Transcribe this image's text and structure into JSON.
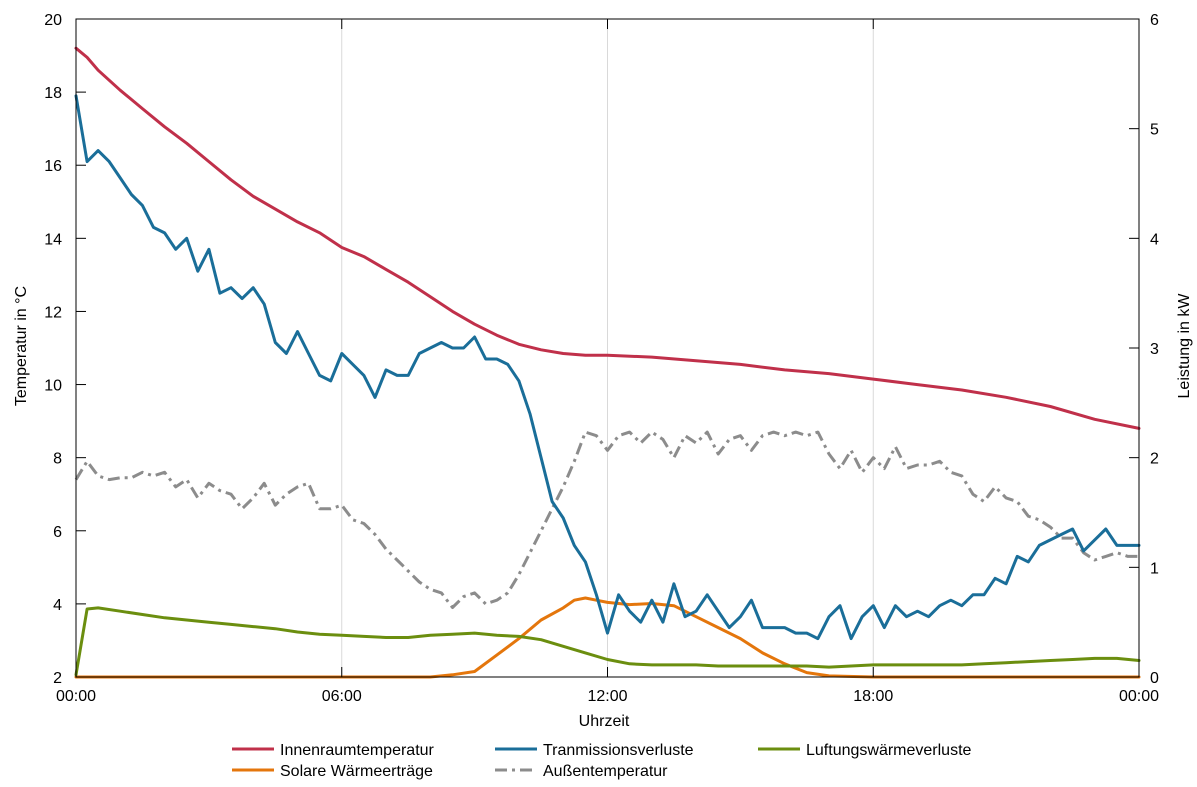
{
  "chart_data": {
    "type": "line",
    "xlabel": "Uhrzeit",
    "ylabel_left": "Temperatur in °C",
    "ylabel_right": "Leistung in kW",
    "x_ticks": [
      0,
      6,
      12,
      18,
      24
    ],
    "x_tick_labels": [
      "00:00",
      "06:00",
      "12:00",
      "18:00",
      "00:00"
    ],
    "xlim": [
      0,
      24
    ],
    "ylim_left": [
      2,
      20
    ],
    "y_ticks_left": [
      2,
      4,
      6,
      8,
      10,
      12,
      14,
      16,
      18,
      20
    ],
    "y_tick_labels_left": [
      "2",
      "4",
      "6",
      "8",
      "10",
      "12",
      "14",
      "16",
      "18",
      "20"
    ],
    "ylim_right": [
      0,
      6
    ],
    "y_ticks_right": [
      0,
      1,
      2,
      3,
      4,
      5,
      6
    ],
    "y_tick_labels_right": [
      "0",
      "1",
      "2",
      "3",
      "4",
      "5",
      "6"
    ],
    "grid": true,
    "legend_placement": "bottom",
    "series": [
      {
        "name": "Innenraumtemperatur",
        "axis": "left",
        "color": "#c0304a",
        "style": "solid",
        "x": [
          0,
          0.25,
          0.5,
          1,
          1.5,
          2,
          2.5,
          3,
          3.5,
          4,
          4.5,
          5,
          5.5,
          6,
          6.5,
          7,
          7.5,
          8,
          8.5,
          9,
          9.5,
          10,
          10.5,
          11,
          11.5,
          12,
          13,
          14,
          15,
          16,
          17,
          18,
          19,
          20,
          21,
          22,
          23,
          24
        ],
        "y": [
          19.2,
          18.95,
          18.6,
          18.05,
          17.55,
          17.05,
          16.6,
          16.1,
          15.6,
          15.15,
          14.8,
          14.45,
          14.15,
          13.75,
          13.5,
          13.15,
          12.8,
          12.4,
          12.0,
          11.65,
          11.35,
          11.1,
          10.95,
          10.85,
          10.8,
          10.8,
          10.75,
          10.65,
          10.55,
          10.4,
          10.3,
          10.15,
          10.0,
          9.85,
          9.65,
          9.4,
          9.05,
          8.8
        ]
      },
      {
        "name": "Tranmissionsverluste",
        "axis": "right",
        "color": "#1a6e99",
        "style": "solid",
        "x": [
          0,
          0.25,
          0.5,
          0.75,
          1,
          1.25,
          1.5,
          1.75,
          2,
          2.25,
          2.5,
          2.75,
          3,
          3.25,
          3.5,
          3.75,
          4,
          4.25,
          4.5,
          4.75,
          5,
          5.25,
          5.5,
          5.75,
          6,
          6.25,
          6.5,
          6.75,
          7,
          7.25,
          7.5,
          7.75,
          8,
          8.25,
          8.5,
          8.75,
          9,
          9.25,
          9.5,
          9.75,
          10,
          10.25,
          10.5,
          10.75,
          11,
          11.25,
          11.5,
          11.75,
          12,
          12.25,
          12.5,
          12.75,
          13,
          13.25,
          13.5,
          13.75,
          14,
          14.25,
          14.5,
          14.75,
          15,
          15.25,
          15.5,
          15.75,
          16,
          16.25,
          16.5,
          16.75,
          17,
          17.25,
          17.5,
          17.75,
          18,
          18.25,
          18.5,
          18.75,
          19,
          19.25,
          19.5,
          19.75,
          20,
          20.25,
          20.5,
          20.75,
          21,
          21.25,
          21.5,
          21.75,
          22,
          22.25,
          22.5,
          22.75,
          23,
          23.25,
          23.5,
          23.75,
          24
        ],
        "y": [
          5.3,
          4.7,
          4.8,
          4.7,
          4.55,
          4.4,
          4.3,
          4.1,
          4.05,
          3.9,
          4.0,
          3.7,
          3.9,
          3.5,
          3.55,
          3.45,
          3.55,
          3.4,
          3.05,
          2.95,
          3.15,
          2.95,
          2.75,
          2.7,
          2.95,
          2.85,
          2.75,
          2.55,
          2.8,
          2.75,
          2.75,
          2.95,
          3.0,
          3.05,
          3.0,
          3.0,
          3.1,
          2.9,
          2.9,
          2.85,
          2.7,
          2.4,
          2.0,
          1.6,
          1.45,
          1.2,
          1.05,
          0.75,
          0.4,
          0.75,
          0.6,
          0.5,
          0.7,
          0.5,
          0.85,
          0.55,
          0.6,
          0.75,
          0.6,
          0.45,
          0.55,
          0.7,
          0.45,
          0.45,
          0.45,
          0.4,
          0.4,
          0.35,
          0.55,
          0.65,
          0.35,
          0.55,
          0.65,
          0.45,
          0.65,
          0.55,
          0.6,
          0.55,
          0.65,
          0.7,
          0.65,
          0.75,
          0.75,
          0.9,
          0.85,
          1.1,
          1.05,
          1.2,
          1.25,
          1.3,
          1.35,
          1.15,
          1.25,
          1.35,
          1.2,
          1.2,
          1.2
        ]
      },
      {
        "name": "Luftungswärmeverluste",
        "axis": "right",
        "color": "#6b8e0f",
        "style": "solid",
        "x": [
          0,
          0.25,
          0.5,
          1,
          1.5,
          2,
          2.5,
          3,
          3.5,
          4,
          4.5,
          5,
          5.5,
          6,
          6.5,
          7,
          7.5,
          8,
          8.5,
          9,
          9.5,
          10,
          10.5,
          11,
          11.5,
          12,
          12.5,
          13,
          13.5,
          14,
          14.5,
          15,
          15.5,
          16,
          16.5,
          17,
          17.5,
          18,
          18.5,
          19,
          19.5,
          20,
          20.5,
          21,
          21.5,
          22,
          22.5,
          23,
          23.5,
          24
        ],
        "y": [
          0.02,
          0.62,
          0.63,
          0.6,
          0.57,
          0.54,
          0.52,
          0.5,
          0.48,
          0.46,
          0.44,
          0.41,
          0.39,
          0.38,
          0.37,
          0.36,
          0.36,
          0.38,
          0.39,
          0.4,
          0.38,
          0.37,
          0.34,
          0.28,
          0.22,
          0.16,
          0.12,
          0.11,
          0.11,
          0.11,
          0.1,
          0.1,
          0.1,
          0.1,
          0.1,
          0.09,
          0.1,
          0.11,
          0.11,
          0.11,
          0.11,
          0.11,
          0.12,
          0.13,
          0.14,
          0.15,
          0.16,
          0.17,
          0.17,
          0.15
        ]
      },
      {
        "name": "Solare Wärmeerträge",
        "axis": "right",
        "color": "#e4760c",
        "style": "solid",
        "x": [
          0,
          1,
          2,
          3,
          4,
          5,
          6,
          7,
          8,
          8.5,
          9,
          9.5,
          10,
          10.5,
          11,
          11.25,
          11.5,
          11.75,
          12,
          12.5,
          13,
          13.5,
          14,
          14.5,
          15,
          15.5,
          16,
          16.5,
          17,
          18,
          19,
          20,
          21,
          22,
          23,
          24
        ],
        "y": [
          0,
          0,
          0,
          0,
          0,
          0,
          0,
          0,
          0,
          0.02,
          0.05,
          0.2,
          0.35,
          0.52,
          0.63,
          0.7,
          0.72,
          0.7,
          0.68,
          0.66,
          0.67,
          0.65,
          0.55,
          0.45,
          0.35,
          0.22,
          0.12,
          0.04,
          0.01,
          0,
          0,
          0,
          0,
          0,
          0,
          0
        ]
      },
      {
        "name": "Außentemperatur",
        "axis": "left",
        "color": "#8c8c8c",
        "style": "dashdot",
        "x": [
          0,
          0.25,
          0.5,
          0.75,
          1,
          1.25,
          1.5,
          1.75,
          2,
          2.25,
          2.5,
          2.75,
          3,
          3.25,
          3.5,
          3.75,
          4,
          4.25,
          4.5,
          4.75,
          5,
          5.25,
          5.5,
          5.75,
          6,
          6.25,
          6.5,
          6.75,
          7,
          7.25,
          7.5,
          7.75,
          8,
          8.25,
          8.5,
          8.75,
          9,
          9.25,
          9.5,
          9.75,
          10,
          10.25,
          10.5,
          10.75,
          11,
          11.25,
          11.5,
          11.75,
          12,
          12.25,
          12.5,
          12.75,
          13,
          13.25,
          13.5,
          13.75,
          14,
          14.25,
          14.5,
          14.75,
          15,
          15.25,
          15.5,
          15.75,
          16,
          16.25,
          16.5,
          16.75,
          17,
          17.25,
          17.5,
          17.75,
          18,
          18.25,
          18.5,
          18.75,
          19,
          19.25,
          19.5,
          19.75,
          20,
          20.25,
          20.5,
          20.75,
          21,
          21.25,
          21.5,
          21.75,
          22,
          22.25,
          22.5,
          22.75,
          23,
          23.25,
          23.5,
          23.75,
          24
        ],
        "y": [
          7.4,
          7.9,
          7.5,
          7.4,
          7.45,
          7.45,
          7.6,
          7.5,
          7.6,
          7.2,
          7.4,
          6.9,
          7.3,
          7.1,
          7.0,
          6.6,
          6.9,
          7.3,
          6.7,
          7.0,
          7.2,
          7.3,
          6.6,
          6.6,
          6.7,
          6.3,
          6.2,
          5.9,
          5.5,
          5.2,
          4.9,
          4.6,
          4.4,
          4.3,
          3.9,
          4.2,
          4.3,
          4.0,
          4.1,
          4.3,
          4.8,
          5.4,
          6.0,
          6.6,
          7.2,
          7.9,
          8.7,
          8.6,
          8.2,
          8.6,
          8.7,
          8.4,
          8.7,
          8.5,
          8.0,
          8.6,
          8.4,
          8.7,
          8.1,
          8.5,
          8.6,
          8.2,
          8.6,
          8.7,
          8.6,
          8.7,
          8.6,
          8.7,
          8.1,
          7.7,
          8.2,
          7.6,
          8.0,
          7.7,
          8.3,
          7.7,
          7.8,
          7.8,
          7.9,
          7.6,
          7.5,
          7.0,
          6.8,
          7.2,
          6.9,
          6.8,
          6.4,
          6.3,
          6.1,
          5.8,
          5.8,
          5.4,
          5.2,
          5.3,
          5.4,
          5.3,
          5.3
        ]
      }
    ]
  }
}
